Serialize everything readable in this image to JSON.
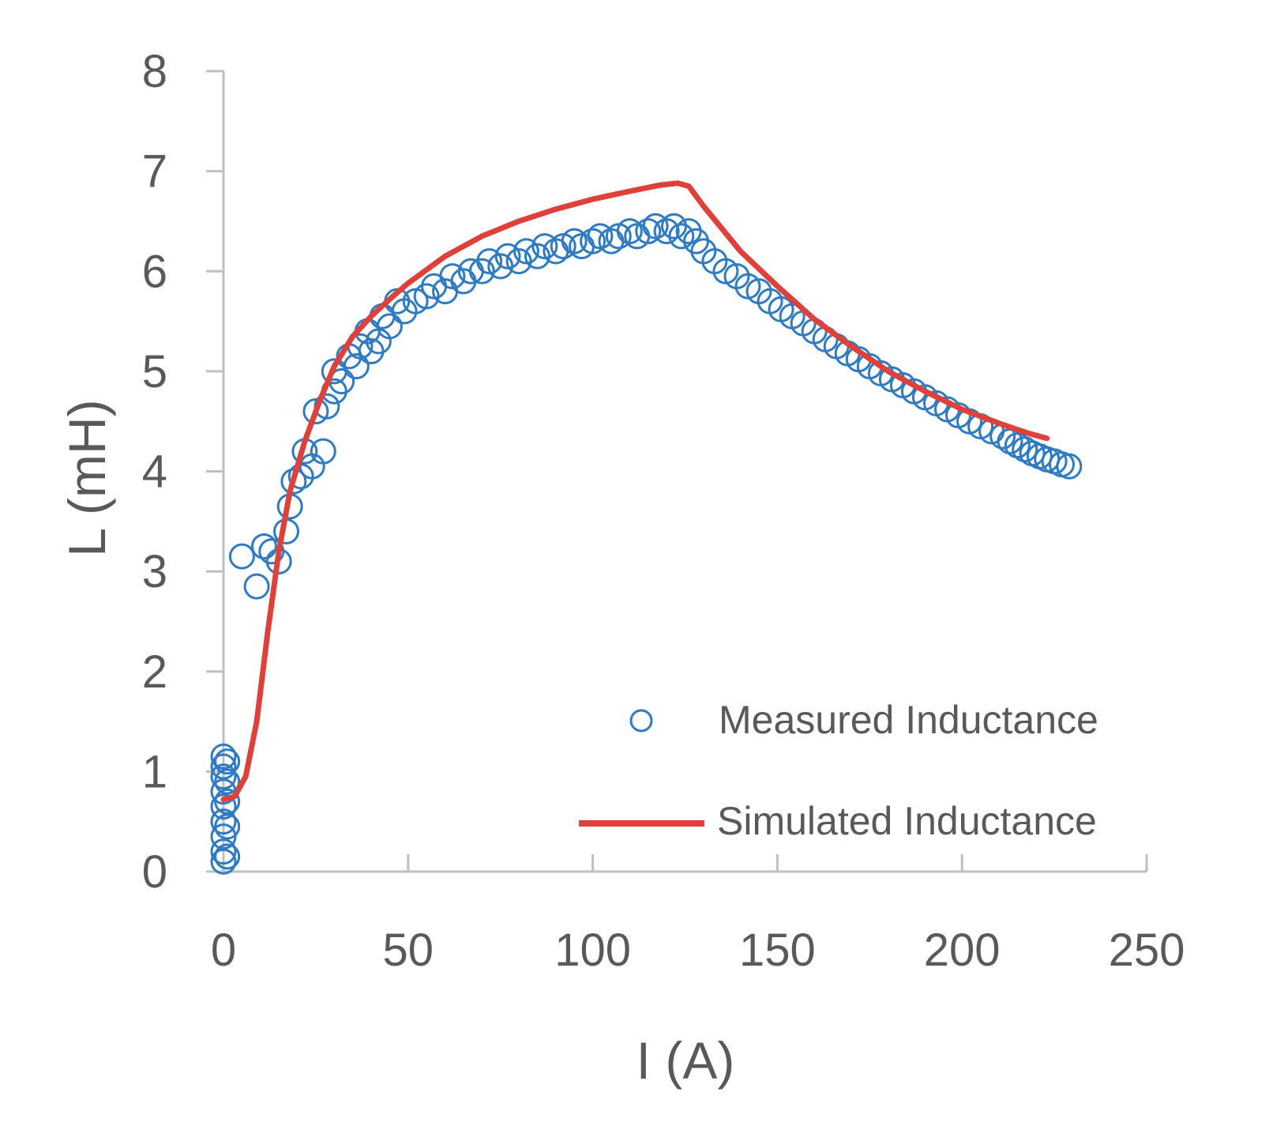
{
  "chart_data": {
    "type": "scatter",
    "title": "",
    "xlabel": "I (A)",
    "ylabel": "L (mH)",
    "xlim": [
      0,
      250
    ],
    "ylim": [
      0,
      8
    ],
    "xticks": [
      0,
      50,
      100,
      150,
      200,
      250
    ],
    "xtick_labels": [
      "0",
      "50",
      "100",
      "150",
      "200",
      "250"
    ],
    "yticks": [
      0,
      1,
      2,
      3,
      4,
      5,
      6,
      7,
      8
    ],
    "ytick_labels": [
      "0",
      "1",
      "2",
      "3",
      "4",
      "5",
      "6",
      "7",
      "8"
    ],
    "grid": false,
    "legend_position": "bottom-right",
    "series": [
      {
        "name": "Measured Inductance",
        "kind": "scatter",
        "marker": "open-circle",
        "color": "#2e7bc4",
        "points": [
          [
            0,
            0.1
          ],
          [
            0,
            0.2
          ],
          [
            0,
            0.35
          ],
          [
            0,
            0.5
          ],
          [
            0,
            0.65
          ],
          [
            0,
            0.8
          ],
          [
            0,
            0.95
          ],
          [
            0,
            1.05
          ],
          [
            0,
            1.15
          ],
          [
            1,
            0.15
          ],
          [
            1,
            0.45
          ],
          [
            1,
            0.7
          ],
          [
            1,
            0.9
          ],
          [
            1,
            1.1
          ],
          [
            5,
            3.15
          ],
          [
            9,
            2.85
          ],
          [
            11,
            3.25
          ],
          [
            13,
            3.2
          ],
          [
            15,
            3.1
          ],
          [
            17,
            3.4
          ],
          [
            18,
            3.65
          ],
          [
            19,
            3.9
          ],
          [
            21,
            3.95
          ],
          [
            22,
            4.2
          ],
          [
            24,
            4.05
          ],
          [
            25,
            4.6
          ],
          [
            27,
            4.2
          ],
          [
            28,
            4.65
          ],
          [
            30,
            4.8
          ],
          [
            30,
            5.0
          ],
          [
            32,
            4.9
          ],
          [
            34,
            5.15
          ],
          [
            36,
            5.05
          ],
          [
            37,
            5.25
          ],
          [
            39,
            5.4
          ],
          [
            40,
            5.2
          ],
          [
            42,
            5.3
          ],
          [
            43,
            5.55
          ],
          [
            45,
            5.45
          ],
          [
            47,
            5.7
          ],
          [
            49,
            5.6
          ],
          [
            52,
            5.7
          ],
          [
            55,
            5.75
          ],
          [
            57,
            5.85
          ],
          [
            60,
            5.8
          ],
          [
            62,
            5.95
          ],
          [
            65,
            5.9
          ],
          [
            67,
            6.0
          ],
          [
            70,
            6.0
          ],
          [
            72,
            6.1
          ],
          [
            75,
            6.05
          ],
          [
            77,
            6.15
          ],
          [
            80,
            6.1
          ],
          [
            82,
            6.2
          ],
          [
            85,
            6.15
          ],
          [
            87,
            6.25
          ],
          [
            90,
            6.2
          ],
          [
            92,
            6.25
          ],
          [
            95,
            6.3
          ],
          [
            97,
            6.25
          ],
          [
            100,
            6.3
          ],
          [
            102,
            6.35
          ],
          [
            105,
            6.3
          ],
          [
            107,
            6.35
          ],
          [
            110,
            6.4
          ],
          [
            112,
            6.35
          ],
          [
            115,
            6.4
          ],
          [
            117,
            6.45
          ],
          [
            120,
            6.4
          ],
          [
            122,
            6.45
          ],
          [
            124,
            6.35
          ],
          [
            126,
            6.4
          ],
          [
            128,
            6.3
          ],
          [
            130,
            6.2
          ],
          [
            133,
            6.1
          ],
          [
            136,
            6.0
          ],
          [
            139,
            5.95
          ],
          [
            142,
            5.85
          ],
          [
            145,
            5.8
          ],
          [
            148,
            5.7
          ],
          [
            151,
            5.62
          ],
          [
            154,
            5.55
          ],
          [
            157,
            5.48
          ],
          [
            160,
            5.4
          ],
          [
            163,
            5.32
          ],
          [
            166,
            5.25
          ],
          [
            169,
            5.18
          ],
          [
            172,
            5.12
          ],
          [
            175,
            5.05
          ],
          [
            178,
            4.98
          ],
          [
            181,
            4.92
          ],
          [
            184,
            4.86
          ],
          [
            187,
            4.8
          ],
          [
            190,
            4.74
          ],
          [
            193,
            4.68
          ],
          [
            196,
            4.62
          ],
          [
            199,
            4.56
          ],
          [
            202,
            4.5
          ],
          [
            205,
            4.45
          ],
          [
            208,
            4.4
          ],
          [
            211,
            4.35
          ],
          [
            213,
            4.3
          ],
          [
            215,
            4.26
          ],
          [
            217,
            4.22
          ],
          [
            219,
            4.18
          ],
          [
            221,
            4.15
          ],
          [
            223,
            4.12
          ],
          [
            225,
            4.1
          ],
          [
            227,
            4.07
          ],
          [
            229,
            4.05
          ]
        ]
      },
      {
        "name": "Simulated Inductance",
        "kind": "line",
        "color": "#e0403a",
        "points": [
          [
            0,
            0.72
          ],
          [
            3,
            0.75
          ],
          [
            6,
            0.95
          ],
          [
            9,
            1.5
          ],
          [
            12,
            2.4
          ],
          [
            15,
            3.2
          ],
          [
            18,
            3.8
          ],
          [
            22,
            4.3
          ],
          [
            26,
            4.7
          ],
          [
            30,
            5.05
          ],
          [
            35,
            5.35
          ],
          [
            40,
            5.55
          ],
          [
            45,
            5.72
          ],
          [
            50,
            5.88
          ],
          [
            60,
            6.15
          ],
          [
            70,
            6.35
          ],
          [
            80,
            6.5
          ],
          [
            90,
            6.62
          ],
          [
            100,
            6.72
          ],
          [
            110,
            6.8
          ],
          [
            118,
            6.86
          ],
          [
            123,
            6.88
          ],
          [
            126,
            6.85
          ],
          [
            130,
            6.65
          ],
          [
            140,
            6.2
          ],
          [
            150,
            5.85
          ],
          [
            160,
            5.52
          ],
          [
            170,
            5.25
          ],
          [
            180,
            5.0
          ],
          [
            190,
            4.8
          ],
          [
            200,
            4.62
          ],
          [
            210,
            4.48
          ],
          [
            218,
            4.38
          ],
          [
            223,
            4.33
          ]
        ]
      }
    ]
  }
}
